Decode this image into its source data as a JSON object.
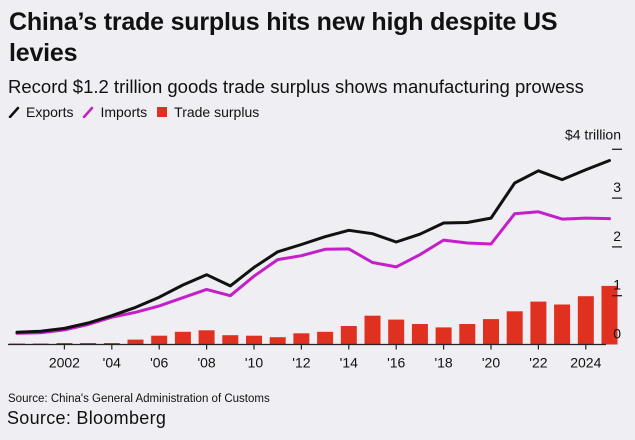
{
  "header": {
    "title": "China’s trade surplus hits new high despite US levies",
    "subtitle": "Record $1.2 trillion goods trade surplus shows manufacturing prowess"
  },
  "legend": [
    {
      "key": "exports",
      "label": "Exports",
      "color": "#111111",
      "shape": "line"
    },
    {
      "key": "imports",
      "label": "Imports",
      "color": "#c41fc9",
      "shape": "line"
    },
    {
      "key": "surplus",
      "label": "Trade surplus",
      "color": "#e03020",
      "shape": "square"
    }
  ],
  "footer": {
    "source_data": "Source: China's General Administration of Customs",
    "source_chart": "Source: Bloomberg"
  },
  "chart_data": {
    "type": "line+bar",
    "title": "China’s trade surplus hits new high despite US levies",
    "subtitle": "Record $1.2 trillion goods trade surplus shows manufacturing prowess",
    "xlabel": "",
    "ylabel": "",
    "y_unit_label": "$4 trillion",
    "ylim": [
      0,
      4
    ],
    "y_ticks": [
      0,
      1,
      2,
      3,
      4
    ],
    "y_tick_labels": [
      "0",
      "1",
      "2",
      "3",
      "$4 trillion"
    ],
    "y_axis_side": "right",
    "grid": false,
    "legend_position": "top-left",
    "x": [
      2000,
      2001,
      2002,
      2003,
      2004,
      2005,
      2006,
      2007,
      2008,
      2009,
      2010,
      2011,
      2012,
      2013,
      2014,
      2015,
      2016,
      2017,
      2018,
      2019,
      2020,
      2021,
      2022,
      2023,
      2024,
      2025
    ],
    "x_ticks": [
      2002,
      2004,
      2006,
      2008,
      2010,
      2012,
      2014,
      2016,
      2018,
      2020,
      2022,
      2024
    ],
    "x_tick_labels": [
      "2002",
      "'04",
      "'06",
      "'08",
      "'10",
      "'12",
      "'14",
      "'16",
      "'18",
      "'20",
      "'22",
      "2024"
    ],
    "series": [
      {
        "name": "Exports",
        "type": "line",
        "color": "#111111",
        "values": [
          0.25,
          0.27,
          0.33,
          0.44,
          0.59,
          0.76,
          0.97,
          1.22,
          1.43,
          1.2,
          1.58,
          1.9,
          2.05,
          2.21,
          2.34,
          2.27,
          2.1,
          2.26,
          2.49,
          2.5,
          2.59,
          3.31,
          3.56,
          3.38,
          3.58,
          3.77
        ]
      },
      {
        "name": "Imports",
        "type": "line",
        "color": "#c41fc9",
        "values": [
          0.23,
          0.24,
          0.3,
          0.41,
          0.56,
          0.66,
          0.79,
          0.96,
          1.13,
          1.0,
          1.4,
          1.74,
          1.82,
          1.95,
          1.96,
          1.68,
          1.59,
          1.84,
          2.14,
          2.08,
          2.06,
          2.68,
          2.72,
          2.57,
          2.59,
          2.58
        ]
      },
      {
        "name": "Trade surplus",
        "type": "bar",
        "color": "#e03020",
        "values": [
          0.02,
          0.02,
          0.03,
          0.03,
          0.03,
          0.1,
          0.18,
          0.26,
          0.29,
          0.19,
          0.18,
          0.15,
          0.23,
          0.26,
          0.38,
          0.59,
          0.51,
          0.42,
          0.35,
          0.42,
          0.52,
          0.68,
          0.88,
          0.82,
          0.99,
          1.2
        ]
      }
    ]
  }
}
